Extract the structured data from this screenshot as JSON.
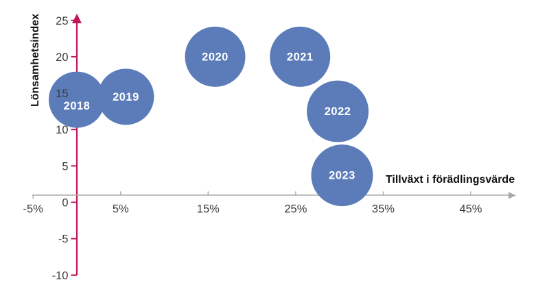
{
  "colors": {
    "background": "#ffffff",
    "bubble_fill": "#5b7cb8",
    "bubble_label": "#ffffff",
    "y_axis": "#c0175c",
    "x_axis": "#a9a9a9",
    "tick_label": "#3d3d3d",
    "axis_title": "#111111"
  },
  "chart_data": {
    "type": "scatter",
    "variant": "bubble",
    "title": "",
    "xlabel": "Tillväxt i förädlingsvärde",
    "ylabel": "Lönsamhetsindex",
    "xlim": [
      -5,
      50
    ],
    "ylim": [
      -10,
      25
    ],
    "grid": false,
    "legend": false,
    "x_ticks": [
      {
        "value": -5,
        "label": "-5%"
      },
      {
        "value": 5,
        "label": "5%"
      },
      {
        "value": 15,
        "label": "15%"
      },
      {
        "value": 25,
        "label": "25%"
      },
      {
        "value": 35,
        "label": "35%"
      },
      {
        "value": 45,
        "label": "45%"
      }
    ],
    "y_ticks": [
      {
        "value": 25,
        "label": "25"
      },
      {
        "value": 20,
        "label": "20"
      },
      {
        "value": 15,
        "label": "15"
      },
      {
        "value": 10,
        "label": "10"
      },
      {
        "value": 5,
        "label": "5"
      },
      {
        "value": 0,
        "label": "0"
      },
      {
        "value": -5,
        "label": "-5"
      },
      {
        "value": -10,
        "label": "-10"
      }
    ],
    "series": [
      {
        "points": [
          {
            "label": "2018",
            "x": 0.0,
            "y": 14.1,
            "r": 41,
            "label_dy": 9
          },
          {
            "label": "2019",
            "x": 5.6,
            "y": 14.5,
            "r": 41,
            "label_dy": 0
          },
          {
            "label": "2020",
            "x": 15.8,
            "y": 20.0,
            "r": 44,
            "label_dy": 0
          },
          {
            "label": "2021",
            "x": 25.5,
            "y": 20.0,
            "r": 44,
            "label_dy": 0
          },
          {
            "label": "2022",
            "x": 29.8,
            "y": 12.5,
            "r": 45,
            "label_dy": 0
          },
          {
            "label": "2023",
            "x": 30.3,
            "y": 3.7,
            "r": 45,
            "label_dy": 0
          }
        ]
      }
    ]
  }
}
